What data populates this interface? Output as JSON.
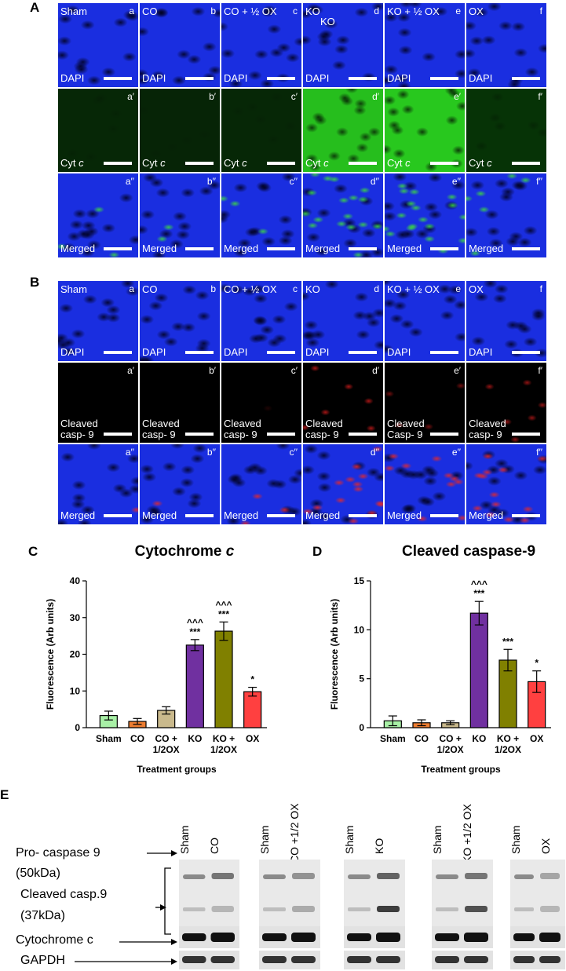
{
  "panels": {
    "A": "A",
    "B": "B",
    "C": "C",
    "D": "D",
    "E": "E"
  },
  "panelA": {
    "groups": [
      "Sham",
      "CO",
      "CO + ½ OX",
      "KO",
      "KO + ½ OX",
      "OX"
    ],
    "extra_label": "KO",
    "rows": [
      {
        "stain": "DAPI",
        "letters": [
          "a",
          "b",
          "c",
          "d",
          "e",
          "f"
        ]
      },
      {
        "stain": "Cyt c",
        "letters": [
          "a′",
          "b′",
          "c′",
          "d′",
          "e′",
          "f′"
        ]
      },
      {
        "stain": "Merged",
        "letters": [
          "a′′",
          "b′′",
          "c′′",
          "d′′",
          "e′′",
          "f′′"
        ]
      }
    ]
  },
  "panelB": {
    "groups": [
      "Sham",
      "CO",
      "CO + ½ OX",
      "KO",
      "KO + ½ OX",
      "OX"
    ],
    "rows": [
      {
        "stain": "DAPI",
        "letters": [
          "a",
          "b",
          "c",
          "d",
          "e",
          "f"
        ]
      },
      {
        "stain": "Cleaved casp- 9",
        "stain_alt": "Cleaved Casp- 9",
        "letters": [
          "a′",
          "b′",
          "c′",
          "d′",
          "e′",
          "f′"
        ]
      },
      {
        "stain": "Merged",
        "letters": [
          "a′′",
          "b′′",
          "c′′",
          "d′′",
          "e′′",
          "f′′"
        ]
      }
    ]
  },
  "chart_data": [
    {
      "type": "bar",
      "title": "Cytochrome c",
      "ylabel": "Fluorescence (Arb units)",
      "xlabel": "Treatment groups",
      "categories": [
        "Sham",
        "CO",
        "CO + 1/2OX",
        "KO",
        "KO + 1/2OX",
        "OX"
      ],
      "values": [
        3.3,
        1.7,
        4.7,
        22.5,
        26.3,
        9.8
      ],
      "errors": [
        1.2,
        0.8,
        1.0,
        1.5,
        2.5,
        1.2
      ],
      "annotations": [
        "",
        "",
        "",
        "***\n^^^",
        "***\n^^^",
        "*"
      ],
      "ylim": [
        0,
        40
      ],
      "yticks": [
        0,
        10,
        20,
        30,
        40
      ],
      "colors": [
        "#a8f0a6",
        "#ed7d31",
        "#c9b98c",
        "#7030a0",
        "#808000",
        "#ff4040"
      ]
    },
    {
      "type": "bar",
      "title": "Cleaved caspase-9",
      "ylabel": "Fluorescence (Arb units)",
      "xlabel": "Treatment groups",
      "categories": [
        "Sham",
        "CO",
        "CO + 1/2OX",
        "KO",
        "KO + 1/2OX",
        "OX"
      ],
      "values": [
        0.7,
        0.5,
        0.5,
        11.7,
        6.9,
        4.7
      ],
      "errors": [
        0.5,
        0.3,
        0.2,
        1.2,
        1.1,
        1.1
      ],
      "annotations": [
        "",
        "",
        "",
        "***\n^^^",
        "***",
        "*"
      ],
      "ylim": [
        0,
        15
      ],
      "yticks": [
        0,
        5,
        10,
        15
      ],
      "colors": [
        "#a8f0a6",
        "#ed7d31",
        "#c9b98c",
        "#7030a0",
        "#808000",
        "#ff4040"
      ]
    }
  ],
  "panelE": {
    "labels": {
      "pro": "Pro- caspase 9",
      "pro_kda": "(50kDa)",
      "cleaved": "Cleaved casp.9",
      "cleaved_kda": "(37kDa)",
      "cytc": "Cytochrome c",
      "gapdh": "GAPDH"
    },
    "lanes": [
      [
        "Sham",
        "CO"
      ],
      [
        "Sham",
        "CO +1/2 OX"
      ],
      [
        "Sham",
        "KO"
      ],
      [
        "Sham",
        "KO +1/2 OX"
      ],
      [
        "Sham",
        "OX"
      ]
    ]
  }
}
